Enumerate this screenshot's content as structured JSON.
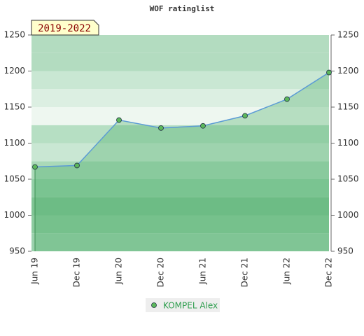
{
  "chart_data": {
    "type": "line",
    "title": "WOF ratinglist",
    "annotation": "2019-2022",
    "categories": [
      "Jun 19",
      "Dec 19",
      "Jun 20",
      "Dec 20",
      "Jun 21",
      "Dec 21",
      "Jun 22",
      "Dec 22"
    ],
    "series": [
      {
        "name": "KOMPEL Alex",
        "color": "#5b9bd5",
        "marker_color": "#5cb85c",
        "values": [
          1067,
          1069,
          1132,
          1121,
          1124,
          1138,
          1161,
          1198
        ]
      }
    ],
    "ylim": [
      950,
      1250
    ],
    "yticks": [
      950,
      1000,
      1050,
      1100,
      1150,
      1200,
      1250
    ],
    "y2lim": [
      950,
      1250
    ],
    "y2ticks": [
      950,
      1000,
      1050,
      1100,
      1150,
      1200,
      1250
    ]
  }
}
